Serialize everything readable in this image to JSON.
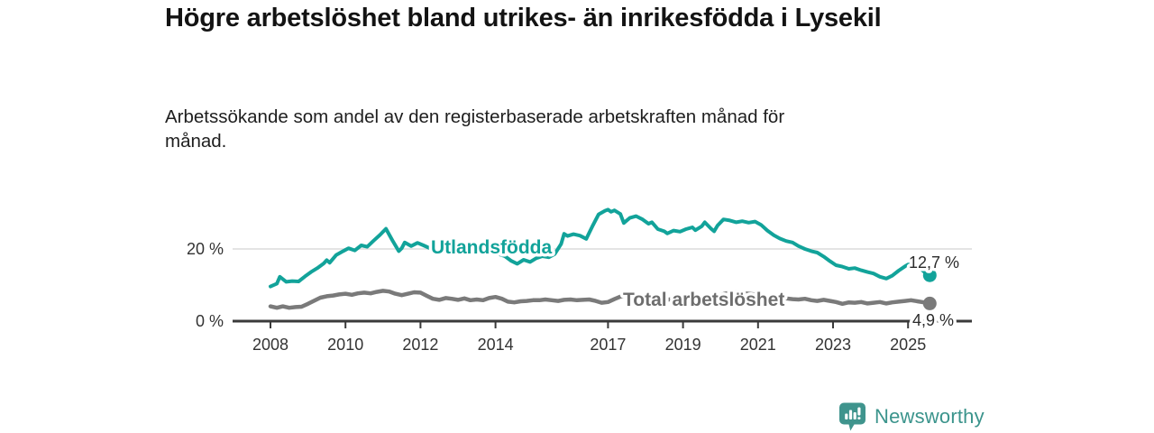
{
  "header": {
    "title": "Högre arbetslöshet bland utrikes- än inrikesfödda i Lysekil",
    "subtitle": "Arbetssökande som andel av den registerbaserade arbetskraften månad för månad."
  },
  "chart_data": {
    "type": "line",
    "title": "Högre arbetslöshet bland utrikes- än inrikesfödda i Lysekil",
    "subtitle": "Arbetssökande som andel av den registerbaserade arbetskraften månad för månad.",
    "unit": "%",
    "y_axis": {
      "range": [
        0,
        33
      ],
      "gridline_at": 20,
      "ticks": [
        {
          "value": 0,
          "label": "0 %"
        },
        {
          "value": 20,
          "label": "20 %"
        }
      ]
    },
    "x_axis": {
      "range_years": [
        2007.0,
        2025.9
      ],
      "ticks": [
        {
          "year": 2008,
          "label": "2008"
        },
        {
          "year": 2010,
          "label": "2010"
        },
        {
          "year": 2012,
          "label": "2012"
        },
        {
          "year": 2014,
          "label": "2014"
        },
        {
          "year": 2017,
          "label": "2017"
        },
        {
          "year": 2019,
          "label": "2019"
        },
        {
          "year": 2021,
          "label": "2021"
        },
        {
          "year": 2023,
          "label": "2023"
        },
        {
          "year": 2025,
          "label": "2025"
        }
      ]
    },
    "series": [
      {
        "id": "utlandsfodda",
        "name": "Utlandsfödda",
        "color": "#12a39a",
        "end_label": "12,7 %",
        "end_value": 12.7,
        "points": [
          [
            2008.0,
            9.6
          ],
          [
            2008.17,
            10.4
          ],
          [
            2008.25,
            12.3
          ],
          [
            2008.42,
            10.9
          ],
          [
            2008.58,
            11.1
          ],
          [
            2008.75,
            11.0
          ],
          [
            2008.92,
            12.4
          ],
          [
            2009.08,
            13.6
          ],
          [
            2009.25,
            14.7
          ],
          [
            2009.42,
            16.0
          ],
          [
            2009.5,
            16.9
          ],
          [
            2009.58,
            16.2
          ],
          [
            2009.75,
            18.3
          ],
          [
            2009.92,
            19.3
          ],
          [
            2010.08,
            20.2
          ],
          [
            2010.25,
            19.6
          ],
          [
            2010.42,
            21.0
          ],
          [
            2010.58,
            20.6
          ],
          [
            2010.75,
            22.3
          ],
          [
            2010.92,
            23.9
          ],
          [
            2011.08,
            25.6
          ],
          [
            2011.25,
            22.4
          ],
          [
            2011.42,
            19.4
          ],
          [
            2011.5,
            20.2
          ],
          [
            2011.58,
            21.8
          ],
          [
            2011.75,
            20.8
          ],
          [
            2011.92,
            21.7
          ],
          [
            2012.08,
            21.0
          ],
          [
            2012.25,
            20.2
          ],
          [
            2012.42,
            19.5
          ],
          [
            2012.58,
            20.1
          ],
          [
            2012.75,
            19.4
          ],
          [
            2012.92,
            19.9
          ],
          [
            2013.08,
            20.3
          ],
          [
            2013.25,
            20.1
          ],
          [
            2013.42,
            19.5
          ],
          [
            2013.58,
            19.0
          ],
          [
            2013.75,
            18.7
          ],
          [
            2013.92,
            19.1
          ],
          [
            2014.08,
            18.6
          ],
          [
            2014.25,
            18.0
          ],
          [
            2014.42,
            16.7
          ],
          [
            2014.58,
            15.9
          ],
          [
            2014.75,
            17.0
          ],
          [
            2014.92,
            16.4
          ],
          [
            2015.08,
            17.4
          ],
          [
            2015.25,
            18.0
          ],
          [
            2015.42,
            17.7
          ],
          [
            2015.58,
            18.6
          ],
          [
            2015.75,
            21.4
          ],
          [
            2015.83,
            24.2
          ],
          [
            2015.92,
            23.6
          ],
          [
            2016.08,
            24.1
          ],
          [
            2016.25,
            23.7
          ],
          [
            2016.42,
            22.8
          ],
          [
            2016.58,
            26.2
          ],
          [
            2016.75,
            29.6
          ],
          [
            2016.92,
            30.6
          ],
          [
            2017.0,
            30.9
          ],
          [
            2017.08,
            30.3
          ],
          [
            2017.17,
            30.7
          ],
          [
            2017.33,
            29.7
          ],
          [
            2017.42,
            27.2
          ],
          [
            2017.58,
            28.6
          ],
          [
            2017.75,
            29.1
          ],
          [
            2017.92,
            28.2
          ],
          [
            2018.08,
            27.0
          ],
          [
            2018.17,
            27.4
          ],
          [
            2018.33,
            25.5
          ],
          [
            2018.5,
            24.9
          ],
          [
            2018.58,
            24.3
          ],
          [
            2018.75,
            25.1
          ],
          [
            2018.92,
            24.8
          ],
          [
            2019.08,
            25.5
          ],
          [
            2019.25,
            26.0
          ],
          [
            2019.33,
            25.2
          ],
          [
            2019.5,
            26.3
          ],
          [
            2019.58,
            27.4
          ],
          [
            2019.75,
            25.6
          ],
          [
            2019.83,
            24.9
          ],
          [
            2019.92,
            26.5
          ],
          [
            2020.08,
            28.2
          ],
          [
            2020.25,
            27.9
          ],
          [
            2020.42,
            27.4
          ],
          [
            2020.58,
            27.7
          ],
          [
            2020.75,
            27.3
          ],
          [
            2020.92,
            27.6
          ],
          [
            2021.08,
            26.7
          ],
          [
            2021.25,
            25.1
          ],
          [
            2021.42,
            23.8
          ],
          [
            2021.58,
            22.9
          ],
          [
            2021.75,
            22.2
          ],
          [
            2021.92,
            21.8
          ],
          [
            2022.08,
            20.8
          ],
          [
            2022.25,
            20.0
          ],
          [
            2022.42,
            19.4
          ],
          [
            2022.58,
            19.0
          ],
          [
            2022.75,
            17.9
          ],
          [
            2022.92,
            16.6
          ],
          [
            2023.08,
            15.5
          ],
          [
            2023.25,
            15.1
          ],
          [
            2023.42,
            14.5
          ],
          [
            2023.58,
            14.7
          ],
          [
            2023.75,
            14.1
          ],
          [
            2023.92,
            13.6
          ],
          [
            2024.08,
            13.2
          ],
          [
            2024.25,
            12.3
          ],
          [
            2024.42,
            11.8
          ],
          [
            2024.58,
            12.6
          ],
          [
            2024.75,
            14.0
          ],
          [
            2024.92,
            15.2
          ],
          [
            2025.0,
            15.7
          ],
          [
            2025.17,
            15.5
          ],
          [
            2025.33,
            14.6
          ],
          [
            2025.45,
            13.5
          ],
          [
            2025.58,
            12.7
          ]
        ]
      },
      {
        "id": "total",
        "name": "Total arbetslöshet",
        "color": "#7a7a7a",
        "label_color": "#6e6e6e",
        "end_label": "4,9 %",
        "end_value": 4.9,
        "points": [
          [
            2008.0,
            4.1
          ],
          [
            2008.17,
            3.7
          ],
          [
            2008.33,
            4.1
          ],
          [
            2008.5,
            3.7
          ],
          [
            2008.67,
            3.9
          ],
          [
            2008.83,
            4.0
          ],
          [
            2009.0,
            4.8
          ],
          [
            2009.17,
            5.7
          ],
          [
            2009.33,
            6.5
          ],
          [
            2009.5,
            6.9
          ],
          [
            2009.67,
            7.1
          ],
          [
            2009.83,
            7.4
          ],
          [
            2010.0,
            7.6
          ],
          [
            2010.17,
            7.3
          ],
          [
            2010.33,
            7.7
          ],
          [
            2010.5,
            7.9
          ],
          [
            2010.67,
            7.7
          ],
          [
            2010.83,
            8.1
          ],
          [
            2011.0,
            8.4
          ],
          [
            2011.17,
            8.2
          ],
          [
            2011.33,
            7.6
          ],
          [
            2011.5,
            7.2
          ],
          [
            2011.67,
            7.6
          ],
          [
            2011.83,
            8.0
          ],
          [
            2012.0,
            7.9
          ],
          [
            2012.17,
            7.0
          ],
          [
            2012.33,
            6.2
          ],
          [
            2012.5,
            5.9
          ],
          [
            2012.67,
            6.4
          ],
          [
            2012.83,
            6.2
          ],
          [
            2013.0,
            5.9
          ],
          [
            2013.17,
            6.3
          ],
          [
            2013.33,
            5.8
          ],
          [
            2013.5,
            6.0
          ],
          [
            2013.67,
            5.8
          ],
          [
            2013.83,
            6.4
          ],
          [
            2014.0,
            6.7
          ],
          [
            2014.17,
            6.2
          ],
          [
            2014.33,
            5.4
          ],
          [
            2014.5,
            5.2
          ],
          [
            2014.67,
            5.5
          ],
          [
            2014.83,
            5.6
          ],
          [
            2015.0,
            5.8
          ],
          [
            2015.17,
            5.8
          ],
          [
            2015.33,
            6.0
          ],
          [
            2015.5,
            5.8
          ],
          [
            2015.67,
            5.6
          ],
          [
            2015.83,
            5.9
          ],
          [
            2016.0,
            6.0
          ],
          [
            2016.17,
            5.8
          ],
          [
            2016.33,
            5.9
          ],
          [
            2016.5,
            6.0
          ],
          [
            2016.67,
            5.6
          ],
          [
            2016.83,
            5.1
          ],
          [
            2017.0,
            5.3
          ],
          [
            2017.17,
            6.1
          ],
          [
            2017.33,
            6.8
          ],
          [
            2017.42,
            7.0
          ],
          [
            2017.58,
            6.7
          ],
          [
            2017.75,
            6.4
          ],
          [
            2017.92,
            6.2
          ],
          [
            2018.08,
            6.0
          ],
          [
            2018.25,
            6.3
          ],
          [
            2018.42,
            6.1
          ],
          [
            2018.58,
            5.9
          ],
          [
            2018.75,
            6.2
          ],
          [
            2018.92,
            6.3
          ],
          [
            2019.08,
            6.4
          ],
          [
            2019.25,
            6.2
          ],
          [
            2019.42,
            6.5
          ],
          [
            2019.58,
            6.4
          ],
          [
            2019.75,
            6.7
          ],
          [
            2019.92,
            7.0
          ],
          [
            2020.08,
            7.5
          ],
          [
            2020.25,
            7.9
          ],
          [
            2020.42,
            8.1
          ],
          [
            2020.58,
            7.8
          ],
          [
            2020.75,
            7.6
          ],
          [
            2020.92,
            7.4
          ],
          [
            2021.08,
            7.2
          ],
          [
            2021.25,
            6.9
          ],
          [
            2021.42,
            6.7
          ],
          [
            2021.58,
            6.5
          ],
          [
            2021.75,
            6.3
          ],
          [
            2021.92,
            6.1
          ],
          [
            2022.08,
            6.0
          ],
          [
            2022.25,
            6.2
          ],
          [
            2022.42,
            5.8
          ],
          [
            2022.58,
            5.6
          ],
          [
            2022.75,
            5.9
          ],
          [
            2022.92,
            5.6
          ],
          [
            2023.08,
            5.3
          ],
          [
            2023.25,
            4.8
          ],
          [
            2023.42,
            5.2
          ],
          [
            2023.58,
            5.1
          ],
          [
            2023.75,
            5.3
          ],
          [
            2023.92,
            4.9
          ],
          [
            2024.08,
            5.1
          ],
          [
            2024.25,
            5.3
          ],
          [
            2024.42,
            4.9
          ],
          [
            2024.58,
            5.2
          ],
          [
            2024.75,
            5.4
          ],
          [
            2024.92,
            5.6
          ],
          [
            2025.08,
            5.8
          ],
          [
            2025.25,
            5.5
          ],
          [
            2025.42,
            5.2
          ],
          [
            2025.58,
            4.9
          ]
        ]
      }
    ],
    "legend_position": "inline-on-lines",
    "grid": "single-horizontal-gridline"
  },
  "footer": {
    "brand": "Newsworthy",
    "brand_color": "#3b948c"
  }
}
